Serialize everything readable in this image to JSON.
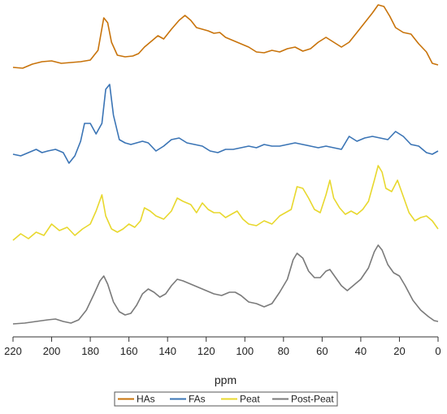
{
  "chart_data": {
    "type": "line",
    "xlabel": "ppm",
    "x_reversed": true,
    "xlim": [
      220,
      0
    ],
    "x_ticks": [
      220,
      200,
      180,
      160,
      140,
      120,
      100,
      80,
      60,
      40,
      20,
      0
    ],
    "y_axis_visible": false,
    "grid": false,
    "legend_position": "bottom-center",
    "series": [
      {
        "name": "HAs",
        "color": "#c8730a",
        "points": [
          [
            220,
            83
          ],
          [
            215,
            84
          ],
          [
            210,
            79
          ],
          [
            205,
            76
          ],
          [
            200,
            75
          ],
          [
            195,
            78
          ],
          [
            190,
            77
          ],
          [
            185,
            76
          ],
          [
            180,
            74
          ],
          [
            176,
            62
          ],
          [
            173,
            22
          ],
          [
            171,
            28
          ],
          [
            169,
            52
          ],
          [
            166,
            68
          ],
          [
            162,
            70
          ],
          [
            158,
            69
          ],
          [
            155,
            66
          ],
          [
            152,
            58
          ],
          [
            148,
            50
          ],
          [
            145,
            44
          ],
          [
            142,
            48
          ],
          [
            138,
            36
          ],
          [
            134,
            25
          ],
          [
            131,
            19
          ],
          [
            128,
            25
          ],
          [
            125,
            34
          ],
          [
            122,
            36
          ],
          [
            119,
            38
          ],
          [
            116,
            41
          ],
          [
            113,
            40
          ],
          [
            110,
            46
          ],
          [
            106,
            50
          ],
          [
            102,
            54
          ],
          [
            98,
            58
          ],
          [
            94,
            64
          ],
          [
            90,
            65
          ],
          [
            86,
            62
          ],
          [
            82,
            64
          ],
          [
            78,
            60
          ],
          [
            74,
            58
          ],
          [
            70,
            63
          ],
          [
            66,
            60
          ],
          [
            62,
            52
          ],
          [
            58,
            46
          ],
          [
            54,
            52
          ],
          [
            50,
            58
          ],
          [
            46,
            52
          ],
          [
            42,
            40
          ],
          [
            38,
            28
          ],
          [
            34,
            16
          ],
          [
            31,
            6
          ],
          [
            28,
            8
          ],
          [
            25,
            20
          ],
          [
            22,
            34
          ],
          [
            18,
            40
          ],
          [
            14,
            42
          ],
          [
            10,
            54
          ],
          [
            6,
            64
          ],
          [
            3,
            78
          ],
          [
            0,
            80
          ]
        ]
      },
      {
        "name": "FAs",
        "color": "#3a74b5",
        "points": [
          [
            220,
            190
          ],
          [
            216,
            192
          ],
          [
            212,
            188
          ],
          [
            208,
            184
          ],
          [
            205,
            188
          ],
          [
            202,
            186
          ],
          [
            198,
            184
          ],
          [
            194,
            188
          ],
          [
            191,
            201
          ],
          [
            188,
            192
          ],
          [
            185,
            174
          ],
          [
            183,
            152
          ],
          [
            180,
            152
          ],
          [
            177,
            165
          ],
          [
            174,
            152
          ],
          [
            172,
            110
          ],
          [
            170,
            104
          ],
          [
            168,
            142
          ],
          [
            165,
            172
          ],
          [
            162,
            176
          ],
          [
            159,
            178
          ],
          [
            156,
            176
          ],
          [
            153,
            174
          ],
          [
            150,
            176
          ],
          [
            146,
            186
          ],
          [
            142,
            180
          ],
          [
            138,
            172
          ],
          [
            134,
            170
          ],
          [
            130,
            176
          ],
          [
            126,
            178
          ],
          [
            122,
            180
          ],
          [
            118,
            186
          ],
          [
            114,
            188
          ],
          [
            110,
            184
          ],
          [
            106,
            184
          ],
          [
            102,
            182
          ],
          [
            98,
            180
          ],
          [
            94,
            182
          ],
          [
            90,
            178
          ],
          [
            86,
            180
          ],
          [
            82,
            180
          ],
          [
            78,
            178
          ],
          [
            74,
            176
          ],
          [
            70,
            178
          ],
          [
            66,
            180
          ],
          [
            62,
            182
          ],
          [
            58,
            180
          ],
          [
            54,
            182
          ],
          [
            50,
            184
          ],
          [
            46,
            168
          ],
          [
            42,
            174
          ],
          [
            38,
            170
          ],
          [
            34,
            168
          ],
          [
            30,
            170
          ],
          [
            26,
            172
          ],
          [
            22,
            162
          ],
          [
            18,
            168
          ],
          [
            14,
            178
          ],
          [
            10,
            180
          ],
          [
            6,
            188
          ],
          [
            3,
            190
          ],
          [
            0,
            186
          ]
        ]
      },
      {
        "name": "Peat",
        "color": "#e8d82e",
        "points": [
          [
            220,
            296
          ],
          [
            216,
            288
          ],
          [
            212,
            294
          ],
          [
            208,
            286
          ],
          [
            204,
            290
          ],
          [
            200,
            276
          ],
          [
            196,
            284
          ],
          [
            192,
            280
          ],
          [
            188,
            290
          ],
          [
            184,
            282
          ],
          [
            180,
            276
          ],
          [
            177,
            260
          ],
          [
            174,
            240
          ],
          [
            172,
            266
          ],
          [
            169,
            282
          ],
          [
            166,
            286
          ],
          [
            163,
            282
          ],
          [
            160,
            276
          ],
          [
            157,
            280
          ],
          [
            154,
            272
          ],
          [
            152,
            256
          ],
          [
            149,
            260
          ],
          [
            146,
            266
          ],
          [
            142,
            270
          ],
          [
            138,
            260
          ],
          [
            135,
            244
          ],
          [
            132,
            248
          ],
          [
            128,
            252
          ],
          [
            125,
            262
          ],
          [
            122,
            250
          ],
          [
            119,
            258
          ],
          [
            116,
            262
          ],
          [
            113,
            262
          ],
          [
            110,
            268
          ],
          [
            107,
            264
          ],
          [
            104,
            260
          ],
          [
            101,
            270
          ],
          [
            98,
            276
          ],
          [
            94,
            278
          ],
          [
            90,
            272
          ],
          [
            86,
            276
          ],
          [
            82,
            266
          ],
          [
            79,
            262
          ],
          [
            76,
            258
          ],
          [
            73,
            230
          ],
          [
            70,
            232
          ],
          [
            67,
            244
          ],
          [
            64,
            258
          ],
          [
            61,
            262
          ],
          [
            58,
            240
          ],
          [
            56,
            222
          ],
          [
            54,
            244
          ],
          [
            51,
            256
          ],
          [
            48,
            264
          ],
          [
            45,
            260
          ],
          [
            42,
            264
          ],
          [
            39,
            258
          ],
          [
            36,
            248
          ],
          [
            33,
            222
          ],
          [
            31,
            204
          ],
          [
            29,
            212
          ],
          [
            27,
            232
          ],
          [
            24,
            236
          ],
          [
            21,
            222
          ],
          [
            18,
            242
          ],
          [
            15,
            262
          ],
          [
            12,
            272
          ],
          [
            9,
            268
          ],
          [
            6,
            266
          ],
          [
            3,
            272
          ],
          [
            0,
            282
          ]
        ]
      },
      {
        "name": "Post-Peat",
        "color": "#7a7a7a",
        "points": [
          [
            220,
            399
          ],
          [
            214,
            398
          ],
          [
            208,
            396
          ],
          [
            202,
            394
          ],
          [
            198,
            393
          ],
          [
            194,
            396
          ],
          [
            190,
            398
          ],
          [
            186,
            394
          ],
          [
            182,
            382
          ],
          [
            178,
            362
          ],
          [
            175,
            346
          ],
          [
            173,
            340
          ],
          [
            171,
            350
          ],
          [
            168,
            372
          ],
          [
            165,
            384
          ],
          [
            162,
            388
          ],
          [
            159,
            386
          ],
          [
            156,
            376
          ],
          [
            153,
            362
          ],
          [
            150,
            356
          ],
          [
            147,
            360
          ],
          [
            144,
            366
          ],
          [
            141,
            362
          ],
          [
            138,
            352
          ],
          [
            135,
            344
          ],
          [
            132,
            346
          ],
          [
            128,
            350
          ],
          [
            124,
            354
          ],
          [
            120,
            358
          ],
          [
            116,
            362
          ],
          [
            112,
            364
          ],
          [
            108,
            360
          ],
          [
            105,
            360
          ],
          [
            102,
            364
          ],
          [
            98,
            372
          ],
          [
            94,
            374
          ],
          [
            90,
            378
          ],
          [
            86,
            374
          ],
          [
            82,
            360
          ],
          [
            78,
            344
          ],
          [
            75,
            320
          ],
          [
            73,
            312
          ],
          [
            70,
            318
          ],
          [
            67,
            334
          ],
          [
            64,
            342
          ],
          [
            61,
            342
          ],
          [
            58,
            334
          ],
          [
            56,
            332
          ],
          [
            53,
            342
          ],
          [
            50,
            352
          ],
          [
            47,
            358
          ],
          [
            44,
            352
          ],
          [
            40,
            344
          ],
          [
            36,
            330
          ],
          [
            33,
            310
          ],
          [
            31,
            302
          ],
          [
            29,
            308
          ],
          [
            26,
            326
          ],
          [
            23,
            336
          ],
          [
            20,
            340
          ],
          [
            17,
            352
          ],
          [
            13,
            370
          ],
          [
            9,
            382
          ],
          [
            5,
            390
          ],
          [
            2,
            395
          ],
          [
            0,
            396
          ]
        ]
      }
    ]
  }
}
